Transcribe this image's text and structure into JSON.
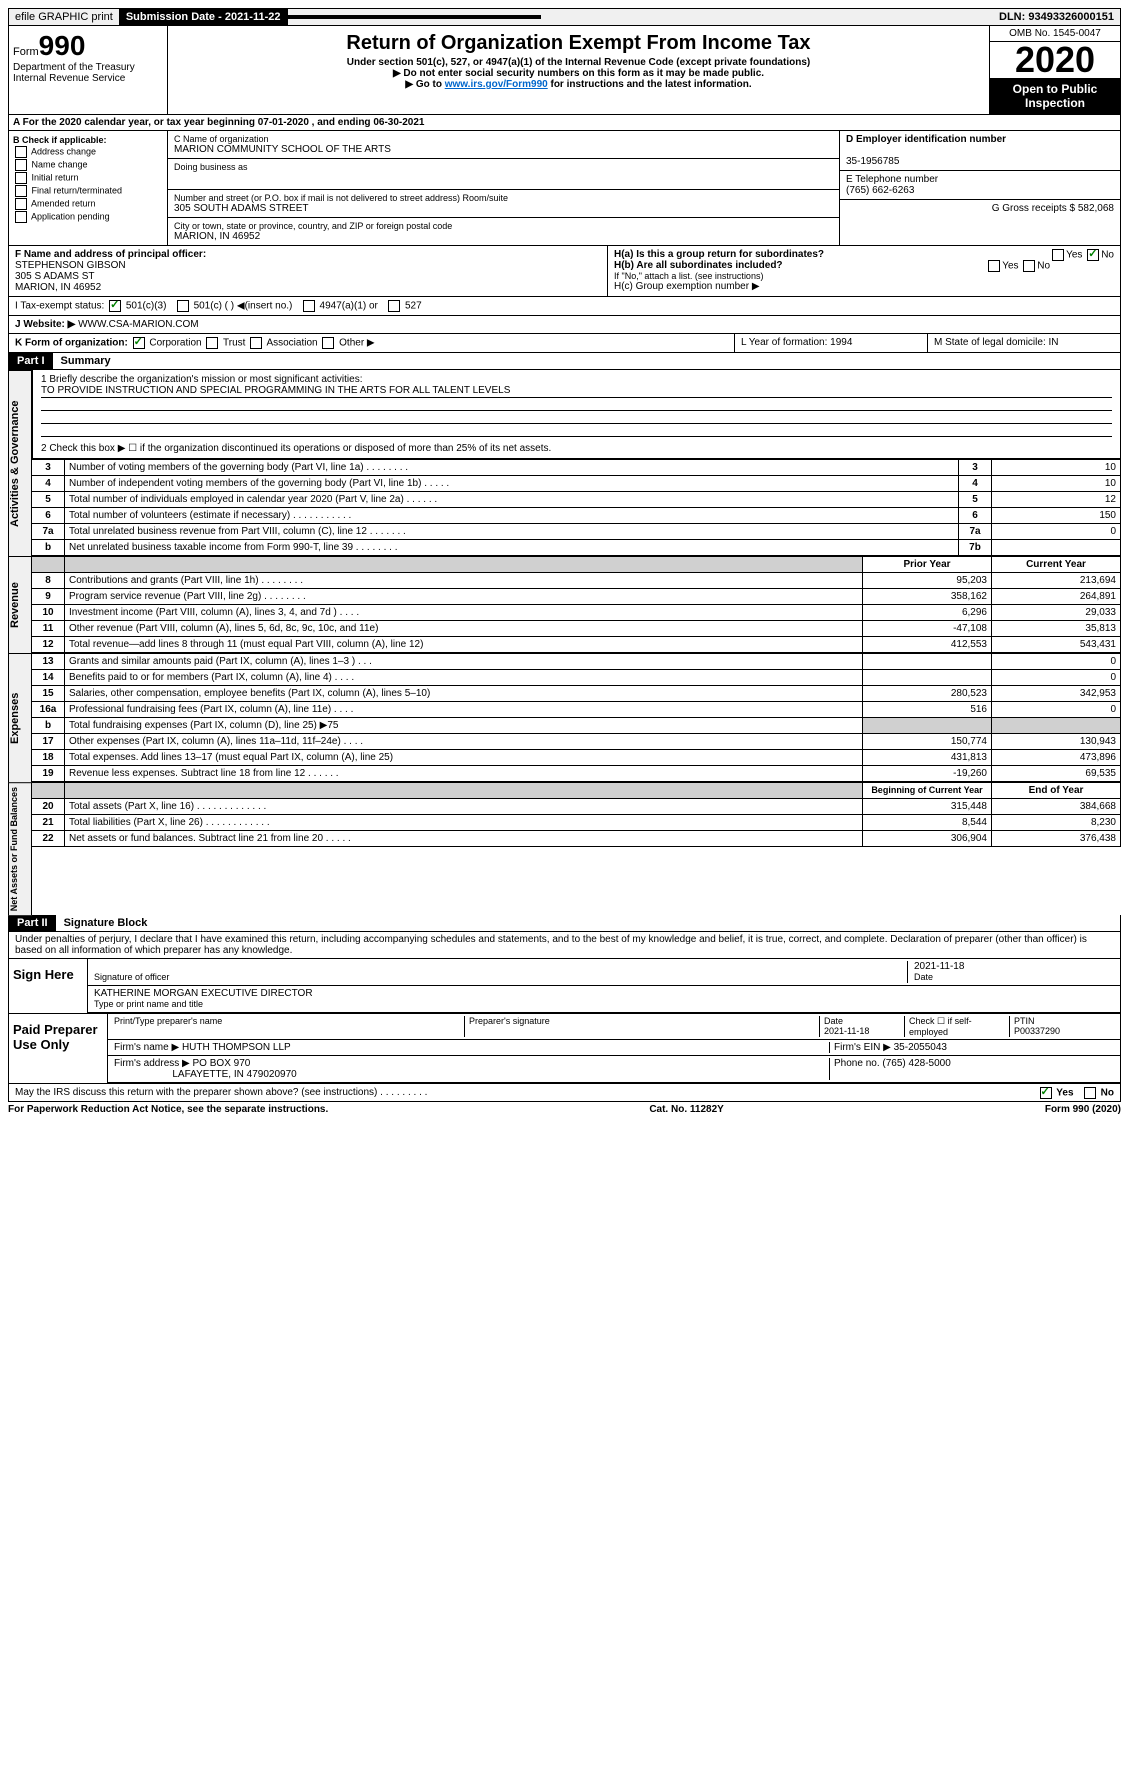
{
  "topbar": {
    "efile": "efile GRAPHIC print",
    "submission_label": "Submission Date - 2021-11-22",
    "dln": "DLN: 93493326000151"
  },
  "header": {
    "form_prefix": "Form",
    "form_number": "990",
    "title": "Return of Organization Exempt From Income Tax",
    "subtitle": "Under section 501(c), 527, or 4947(a)(1) of the Internal Revenue Code (except private foundations)",
    "note1": "▶ Do not enter social security numbers on this form as it may be made public.",
    "note2_prefix": "▶ Go to ",
    "note2_link": "www.irs.gov/Form990",
    "note2_suffix": " for instructions and the latest information.",
    "dept": "Department of the Treasury Internal Revenue Service",
    "omb": "OMB No. 1545-0047",
    "year": "2020",
    "open_public": "Open to Public Inspection"
  },
  "section_a": "A For the 2020 calendar year, or tax year beginning 07-01-2020    , and ending 06-30-2021",
  "col_b": {
    "header": "B Check if applicable:",
    "items": [
      "Address change",
      "Name change",
      "Initial return",
      "Final return/terminated",
      "Amended return",
      "Application pending"
    ]
  },
  "col_c": {
    "name_label": "C Name of organization",
    "name": "MARION COMMUNITY SCHOOL OF THE ARTS",
    "dba_label": "Doing business as",
    "addr_label": "Number and street (or P.O. box if mail is not delivered to street address)        Room/suite",
    "addr": "305 SOUTH ADAMS STREET",
    "city_label": "City or town, state or province, country, and ZIP or foreign postal code",
    "city": "MARION, IN  46952"
  },
  "col_d": {
    "ein_label": "D Employer identification number",
    "ein": "35-1956785",
    "phone_label": "E Telephone number",
    "phone": "(765) 662-6263",
    "gross_label": "G Gross receipts $ 582,068"
  },
  "row_f": {
    "label": "F Name and address of principal officer:",
    "name": "STEPHENSON GIBSON",
    "addr": "305 S ADAMS ST",
    "city": "MARION, IN  46952"
  },
  "row_h": {
    "ha": "H(a)  Is this a group return for subordinates?",
    "hb": "H(b)  Are all subordinates included?",
    "hb_note": "If \"No,\" attach a list. (see instructions)",
    "hc": "H(c)  Group exemption number ▶",
    "yes": "Yes",
    "no": "No"
  },
  "row_i": {
    "label": "I   Tax-exempt status:",
    "opts": [
      "501(c)(3)",
      "501(c) (   ) ◀(insert no.)",
      "4947(a)(1) or",
      "527"
    ]
  },
  "row_j": {
    "label": "J   Website: ▶",
    "value": "WWW.CSA-MARION.COM"
  },
  "row_k": {
    "label": "K Form of organization:",
    "corp": "Corporation",
    "trust": "Trust",
    "assoc": "Association",
    "other": "Other ▶",
    "l_label": "L Year of formation: 1994",
    "m_label": "M State of legal domicile: IN"
  },
  "part1": {
    "header": "Part I",
    "title": "Summary"
  },
  "governance": {
    "label": "Activities & Governance",
    "line1_label": "1  Briefly describe the organization's mission or most significant activities:",
    "line1_text": "TO PROVIDE INSTRUCTION AND SPECIAL PROGRAMMING IN THE ARTS FOR ALL TALENT LEVELS",
    "line2": "2  Check this box ▶ ☐  if the organization discontinued its operations or disposed of more than 25% of its net assets.",
    "rows": [
      {
        "n": "3",
        "desc": "Number of voting members of the governing body (Part VI, line 1a)  .   .   .   .   .   .   .   .",
        "box": "3",
        "val": "10"
      },
      {
        "n": "4",
        "desc": "Number of independent voting members of the governing body (Part VI, line 1b)   .   .   .   .   .",
        "box": "4",
        "val": "10"
      },
      {
        "n": "5",
        "desc": "Total number of individuals employed in calendar year 2020 (Part V, line 2a)  .   .   .   .   .   .",
        "box": "5",
        "val": "12"
      },
      {
        "n": "6",
        "desc": "Total number of volunteers (estimate if necessary)  .   .   .   .   .   .   .   .   .   .   .",
        "box": "6",
        "val": "150"
      },
      {
        "n": "7a",
        "desc": "Total unrelated business revenue from Part VIII, column (C), line 12  .   .   .   .   .   .   .",
        "box": "7a",
        "val": "0"
      },
      {
        "n": "b",
        "desc": "Net unrelated business taxable income from Form 990-T, line 39   .   .   .   .   .   .   .   .",
        "box": "7b",
        "val": ""
      }
    ]
  },
  "revenue": {
    "label": "Revenue",
    "header_prior": "Prior Year",
    "header_current": "Current Year",
    "rows": [
      {
        "n": "8",
        "desc": "Contributions and grants (Part VIII, line 1h)  .   .   .   .   .   .   .   .",
        "prior": "95,203",
        "curr": "213,694"
      },
      {
        "n": "9",
        "desc": "Program service revenue (Part VIII, line 2g)  .   .   .   .   .   .   .   .",
        "prior": "358,162",
        "curr": "264,891"
      },
      {
        "n": "10",
        "desc": "Investment income (Part VIII, column (A), lines 3, 4, and 7d )  .   .   .   .",
        "prior": "6,296",
        "curr": "29,033"
      },
      {
        "n": "11",
        "desc": "Other revenue (Part VIII, column (A), lines 5, 6d, 8c, 9c, 10c, and 11e)",
        "prior": "-47,108",
        "curr": "35,813"
      },
      {
        "n": "12",
        "desc": "Total revenue—add lines 8 through 11 (must equal Part VIII, column (A), line 12)",
        "prior": "412,553",
        "curr": "543,431"
      }
    ]
  },
  "expenses": {
    "label": "Expenses",
    "rows": [
      {
        "n": "13",
        "desc": "Grants and similar amounts paid (Part IX, column (A), lines 1–3 )   .   .   .",
        "prior": "",
        "curr": "0"
      },
      {
        "n": "14",
        "desc": "Benefits paid to or for members (Part IX, column (A), line 4)  .   .   .   .",
        "prior": "",
        "curr": "0"
      },
      {
        "n": "15",
        "desc": "Salaries, other compensation, employee benefits (Part IX, column (A), lines 5–10)",
        "prior": "280,523",
        "curr": "342,953"
      },
      {
        "n": "16a",
        "desc": "Professional fundraising fees (Part IX, column (A), line 11e)  .   .   .   .",
        "prior": "516",
        "curr": "0"
      },
      {
        "n": "b",
        "desc": "Total fundraising expenses (Part IX, column (D), line 25) ▶75",
        "prior": "",
        "curr": "",
        "shaded": true
      },
      {
        "n": "17",
        "desc": "Other expenses (Part IX, column (A), lines 11a–11d, 11f–24e)  .   .   .   .",
        "prior": "150,774",
        "curr": "130,943"
      },
      {
        "n": "18",
        "desc": "Total expenses. Add lines 13–17 (must equal Part IX, column (A), line 25)",
        "prior": "431,813",
        "curr": "473,896"
      },
      {
        "n": "19",
        "desc": "Revenue less expenses. Subtract line 18 from line 12  .   .   .   .   .   .",
        "prior": "-19,260",
        "curr": "69,535"
      }
    ]
  },
  "netassets": {
    "label": "Net Assets or Fund Balances",
    "header_begin": "Beginning of Current Year",
    "header_end": "End of Year",
    "rows": [
      {
        "n": "20",
        "desc": "Total assets (Part X, line 16) .   .   .   .   .   .   .   .   .   .   .   .   .",
        "prior": "315,448",
        "curr": "384,668"
      },
      {
        "n": "21",
        "desc": "Total liabilities (Part X, line 26)  .   .   .   .   .   .   .   .   .   .   .   .",
        "prior": "8,544",
        "curr": "8,230"
      },
      {
        "n": "22",
        "desc": "Net assets or fund balances. Subtract line 21 from line 20  .   .   .   .   .",
        "prior": "306,904",
        "curr": "376,438"
      }
    ]
  },
  "part2": {
    "header": "Part II",
    "title": "Signature Block",
    "declaration": "Under penalties of perjury, I declare that I have examined this return, including accompanying schedules and statements, and to the best of my knowledge and belief, it is true, correct, and complete. Declaration of preparer (other than officer) is based on all information of which preparer has any knowledge."
  },
  "sign_here": {
    "label": "Sign Here",
    "sig_officer": "Signature of officer",
    "date": "2021-11-18",
    "date_label": "Date",
    "name": "KATHERINE MORGAN EXECUTIVE DIRECTOR",
    "name_label": "Type or print name and title"
  },
  "paid_prep": {
    "label": "Paid Preparer Use Only",
    "col1": "Print/Type preparer's name",
    "col2": "Preparer's signature",
    "col3_label": "Date",
    "col3": "2021-11-18",
    "col4_label": "Check ☐ if self-employed",
    "col5_label": "PTIN",
    "col5": "P00337290",
    "firm_name_label": "Firm's name    ▶",
    "firm_name": "HUTH THOMPSON LLP",
    "firm_ein_label": "Firm's EIN ▶",
    "firm_ein": "35-2055043",
    "firm_addr_label": "Firm's address ▶",
    "firm_addr": "PO BOX 970",
    "firm_city": "LAFAYETTE, IN  479020970",
    "phone_label": "Phone no.",
    "phone": "(765) 428-5000"
  },
  "discuss": {
    "text": "May the IRS discuss this return with the preparer shown above? (see instructions)   .   .   .   .   .   .   .   .   .",
    "yes": "Yes",
    "no": "No"
  },
  "footer": {
    "left": "For Paperwork Reduction Act Notice, see the separate instructions.",
    "mid": "Cat. No. 11282Y",
    "right": "Form 990 (2020)"
  }
}
